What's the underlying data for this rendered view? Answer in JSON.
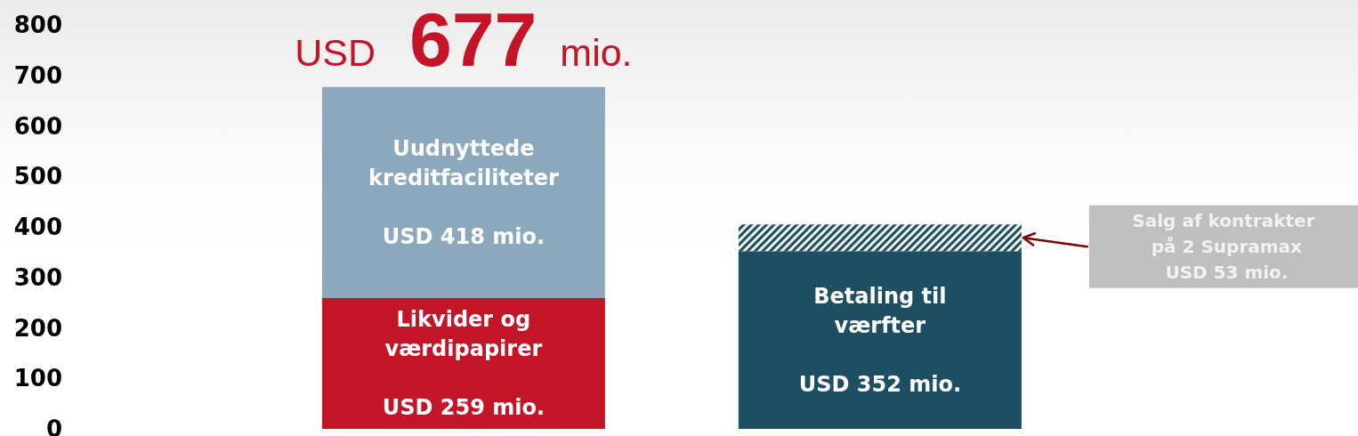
{
  "chart_data": {
    "type": "bar",
    "categories": [
      null,
      null
    ],
    "stacked": true,
    "series": [
      {
        "name": "Likvider og værdipapirer",
        "color": "#c41428",
        "values": [
          259,
          null
        ],
        "value_labels": [
          "USD 259 mio.",
          null
        ]
      },
      {
        "name": "Uudnyttede kreditfaciliteter",
        "color": "#8ca8bc",
        "values": [
          418,
          null
        ],
        "value_labels": [
          "USD 418 mio.",
          null
        ]
      },
      {
        "name": "Betaling til værfter",
        "color": "#1e4e62",
        "values": [
          null,
          352
        ],
        "value_labels": [
          null,
          "USD 352 mio."
        ]
      },
      {
        "color": "#1e4e62",
        "values": [
          null,
          53
        ]
      }
    ],
    "totals": [
      "USD 677 mio.",
      null
    ],
    "annotations": [
      "Salg af kontrakter\npå 2 Supramax\nUSD 53 mio."
    ],
    "ylim": [
      0,
      800
    ],
    "yticks": [
      0,
      100,
      200,
      300,
      400,
      500,
      600,
      700,
      800
    ],
    "grid": false,
    "legend": false,
    "tick_labels": "y"
  }
}
